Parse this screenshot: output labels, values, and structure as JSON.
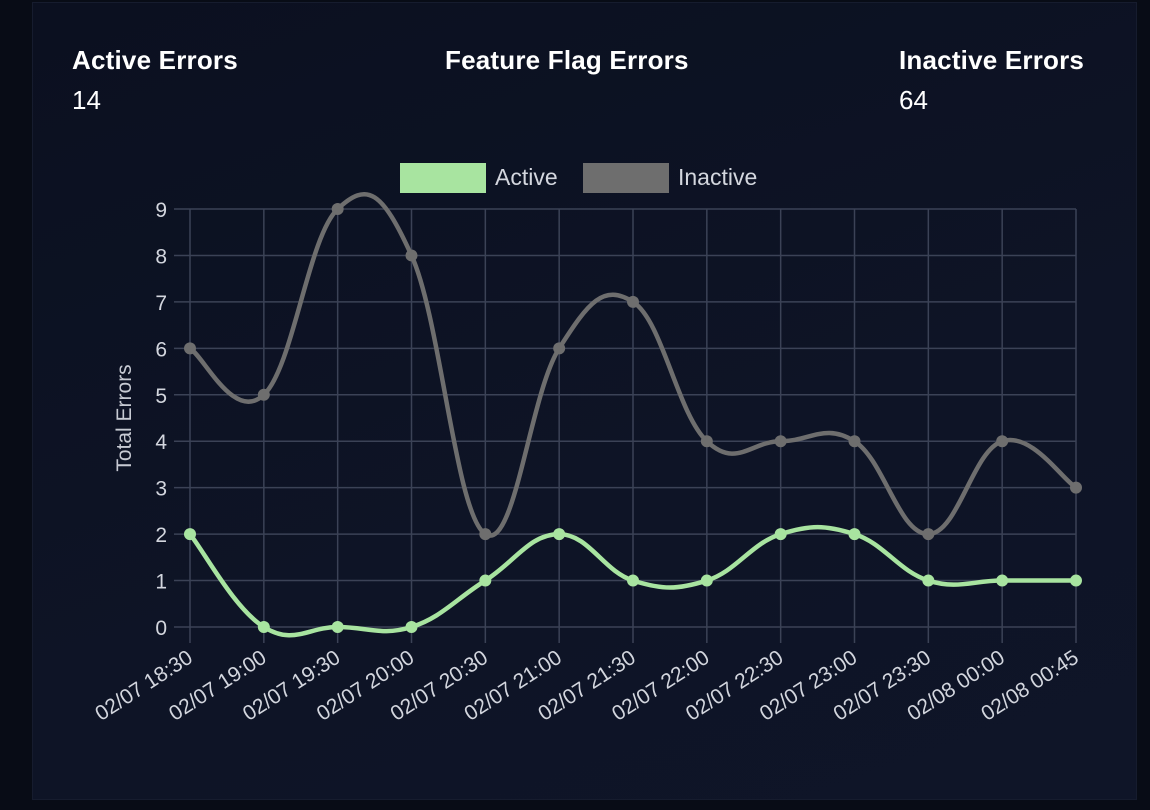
{
  "stats": {
    "active": {
      "label": "Active Errors",
      "value": "14"
    },
    "feature_flag": {
      "label": "Feature Flag Errors",
      "value": ""
    },
    "inactive": {
      "label": "Inactive Errors",
      "value": "64"
    }
  },
  "colors": {
    "active": "#a8e4a0",
    "inactive": "#6e6e6e",
    "grid": "#3b4256",
    "background": "#0e1426"
  },
  "chart_data": {
    "type": "line",
    "title": "",
    "xlabel": "",
    "ylabel": "Total Errors",
    "ylim": [
      0,
      9
    ],
    "yticks": [
      0,
      1,
      2,
      3,
      4,
      5,
      6,
      7,
      8,
      9
    ],
    "grid": true,
    "legend_position": "top",
    "categories": [
      "02/07 18:30",
      "02/07 19:00",
      "02/07 19:30",
      "02/07 20:00",
      "02/07 20:30",
      "02/07 21:00",
      "02/07 21:30",
      "02/07 22:00",
      "02/07 22:30",
      "02/07 23:00",
      "02/07 23:30",
      "02/08 00:00",
      "02/08 00:45"
    ],
    "series": [
      {
        "name": "Active",
        "color": "#a8e4a0",
        "values": [
          2,
          0,
          0,
          0,
          1,
          2,
          1,
          1,
          2,
          2,
          1,
          1,
          1
        ]
      },
      {
        "name": "Inactive",
        "color": "#6e6e6e",
        "values": [
          6,
          5,
          9,
          8,
          2,
          6,
          7,
          4,
          4,
          4,
          2,
          4,
          3
        ]
      }
    ]
  }
}
